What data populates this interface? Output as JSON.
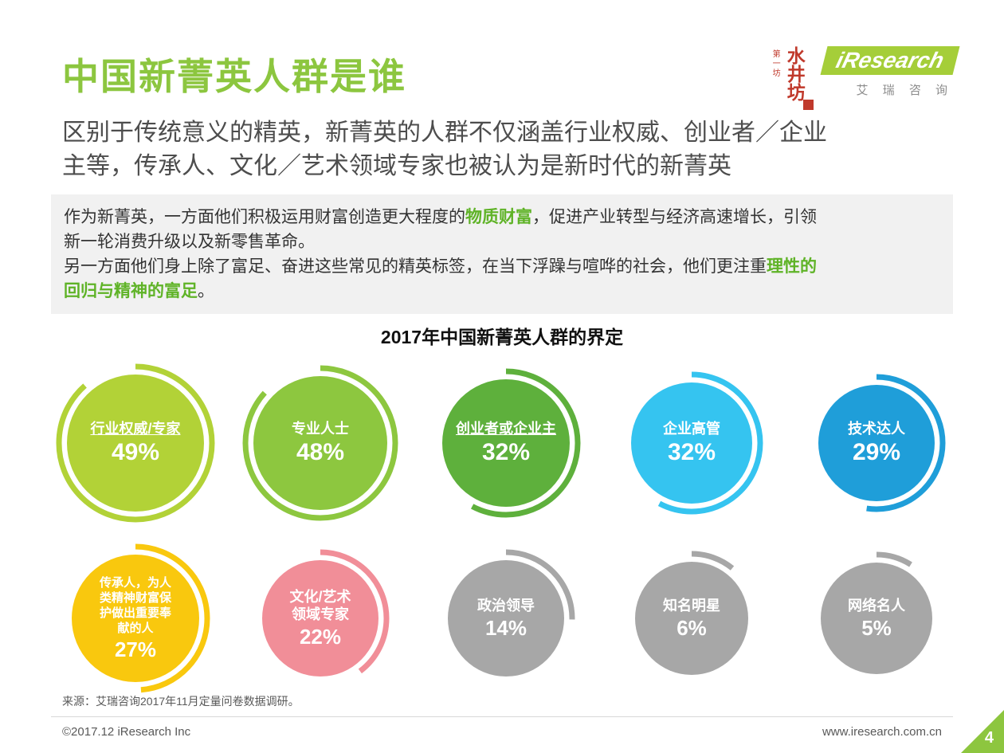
{
  "page": {
    "title": "中国新菁英人群是谁",
    "subtitle": "区别于传统意义的精英，新菁英的人群不仅涵盖行业权威、创业者／企业\n主等，传承人、文化／艺术领域专家也被认为是新时代的新菁英"
  },
  "logo": {
    "brand": "iResearch",
    "brand_cn": "艾 瑞 咨 询",
    "seal_main": "水井坊",
    "seal_small": "第一坊"
  },
  "summary": {
    "p1_pre": "作为新菁英，一方面他们积极运用财富创造更大程度的",
    "p1_highlight": "物质财富",
    "p1_post": "，促进产业转型与经济高速增长，引领\n新一轮消费升级以及新零售革命。",
    "p2_pre": "另一方面他们身上除了富足、奋进这些常见的精英标签，在当下浮躁与喧哗的社会，他们更注重",
    "p2_highlight": "理性的\n回归与精神的富足",
    "p2_post": "。"
  },
  "chart_data": {
    "type": "bubble",
    "title": "2017年中国新菁英人群的界定",
    "unit": "%",
    "categories": [
      "行业权威/专家",
      "专业人士",
      "创业者或企业主",
      "企业高管",
      "技术达人",
      "传承人，为人类精神财富保护做出重要奉献的人",
      "文化/艺术领域专家",
      "政治领导",
      "知名明星",
      "网络名人"
    ],
    "values": [
      49,
      48,
      32,
      32,
      29,
      27,
      22,
      14,
      6,
      5
    ],
    "bubbles": [
      {
        "label": "行业权威/专家",
        "value": 49,
        "color": "#b2d237",
        "size": 172,
        "underline": true
      },
      {
        "label": "专业人士",
        "value": 48,
        "color": "#8dc73f",
        "size": 168
      },
      {
        "label": "创业者或企业主",
        "value": 32,
        "color": "#5eb03c",
        "size": 160,
        "underline": true
      },
      {
        "label": "企业高管",
        "value": 32,
        "color": "#35c4f0",
        "size": 152
      },
      {
        "label": "技术达人",
        "value": 29,
        "color": "#1f9ed9",
        "size": 146
      },
      {
        "label": "传承人，为人\n类精神财富保\n护做出重要奉\n献的人",
        "value": 27,
        "color": "#f9c80e",
        "size": 160,
        "small": true
      },
      {
        "label": "文化/艺术\n领域专家",
        "value": 22,
        "color": "#f18e98",
        "size": 146
      },
      {
        "label": "政治领导",
        "value": 14,
        "color": "#a7a7a7",
        "size": 146
      },
      {
        "label": "知名明星",
        "value": 6,
        "color": "#a7a7a7",
        "size": 142
      },
      {
        "label": "网络名人",
        "value": 5,
        "color": "#a7a7a7",
        "size": 140
      }
    ]
  },
  "source": "来源：艾瑞咨询2017年11月定量问卷数据调研。",
  "footer": {
    "left": "©2017.12 iResearch Inc",
    "right": "www.iresearch.com.cn",
    "page_number": "4"
  },
  "colors": {
    "title_green": "#8cc63f",
    "highlight_green": "#5fb327",
    "logo_green": "#a5ce39",
    "box_bg": "#f1f1f1"
  }
}
